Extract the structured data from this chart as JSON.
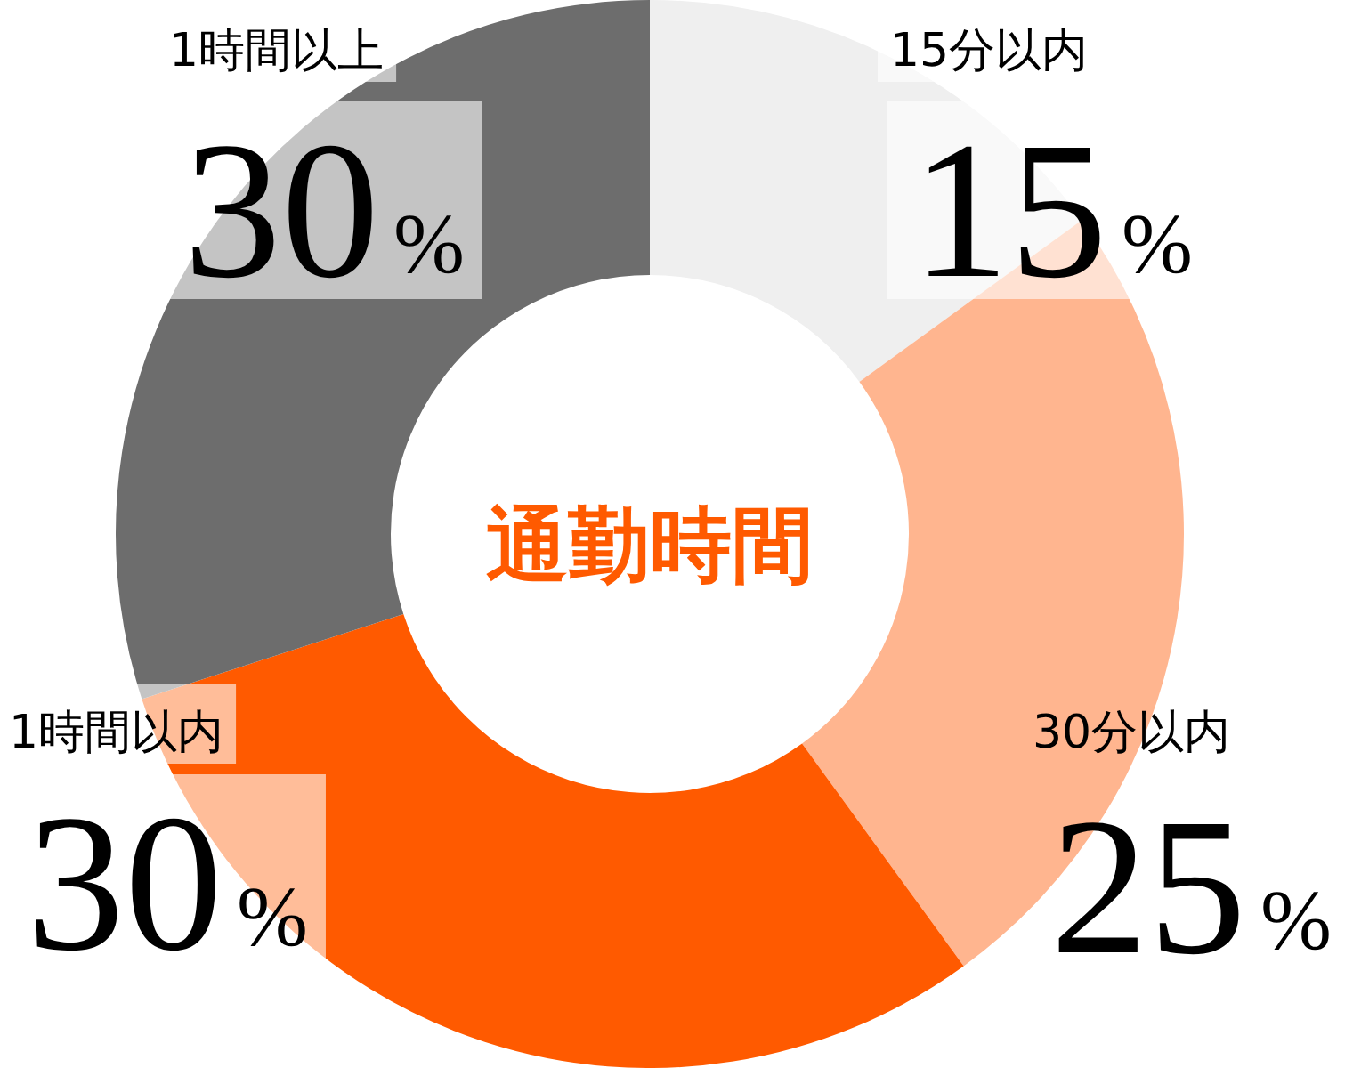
{
  "chart_data": {
    "type": "donut",
    "title": "通勤時間",
    "categories": [
      "15分以内",
      "30分以内",
      "1時間以内",
      "1時間以上"
    ],
    "values": [
      15,
      25,
      30,
      30
    ],
    "colors": [
      "#efefef",
      "#ffb58f",
      "#ff5a00",
      "#6d6d6d"
    ],
    "value_labels": [
      "15%",
      "25%",
      "30%",
      "30%"
    ]
  }
}
